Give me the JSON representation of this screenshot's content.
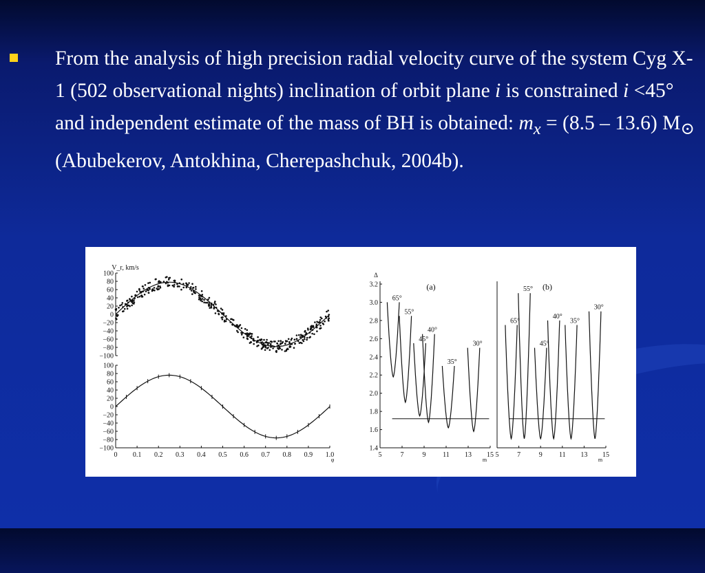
{
  "slide": {
    "bullet_text": {
      "p1": "From the analysis of high precision radial velocity curve of the system Cyg X-1 (502 observational nights) inclination of orbit plane ",
      "i1": "i",
      "p2": " is constrained ",
      "i2": "i",
      "p3": " <45° and independent estimate of the mass of BH is obtained: ",
      "m": "m",
      "x": "x",
      "p4": " = (8.5 – 13.6) M",
      "sun": "⊙",
      "p5": " (Abubekerov, Antokhina, Cherepashchuk, 2004b)."
    },
    "colors": {
      "bullet": "#ffd21a",
      "text": "#ffffff",
      "figure_bg": "#ffffff"
    }
  },
  "chart_data": [
    {
      "type": "scatter",
      "ylabel": "V_r, km/s",
      "ylim": [
        -100,
        100
      ],
      "yticks": [
        "100",
        "80",
        "60",
        "40",
        "20",
        "0",
        "−20",
        "−40",
        "−60",
        "−80",
        "−100"
      ],
      "xlim": [
        0,
        1.0
      ],
      "note": "observed radial velocities vs phase with fitted sine",
      "amplitude": 78,
      "offset": 0,
      "peak_phase": 0.25
    },
    {
      "type": "line",
      "ylim": [
        -100,
        100
      ],
      "yticks": [
        "100",
        "80",
        "60",
        "40",
        "20",
        "0",
        "−20",
        "−40",
        "−60",
        "−80",
        "−100"
      ],
      "xlim": [
        0,
        1.0
      ],
      "xticks": [
        "0",
        "0.1",
        "0.2",
        "0.3",
        "0.4",
        "0.5",
        "0.6",
        "0.7",
        "0.8",
        "0.9",
        "1.0"
      ],
      "xlabel": "φ",
      "amplitude": 76,
      "peak_phase": 0.25
    },
    {
      "type": "line",
      "panel": "(a)",
      "ylabel": "Δ",
      "yticks": [
        "3.2",
        "3.0",
        "2.8",
        "2.6",
        "2.4",
        "2.2",
        "2.0",
        "1.8",
        "1.6",
        "1.4"
      ],
      "ylim": [
        1.4,
        3.2
      ],
      "xticks": [
        "5",
        "7",
        "9",
        "11",
        "13",
        "15"
      ],
      "xlim": [
        5,
        15
      ],
      "xlabel": "m",
      "threshold": 1.72,
      "series": [
        {
          "name": "65°",
          "center": 6.2,
          "min": 2.18,
          "max": 3.0
        },
        {
          "name": "55°",
          "center": 7.3,
          "min": 1.9,
          "max": 2.85
        },
        {
          "name": "45°",
          "center": 8.6,
          "min": 1.75,
          "max": 2.55
        },
        {
          "name": "40°",
          "center": 9.4,
          "min": 1.68,
          "max": 2.65
        },
        {
          "name": "35°",
          "center": 11.2,
          "min": 1.62,
          "max": 2.3
        },
        {
          "name": "30°",
          "center": 13.5,
          "min": 1.58,
          "max": 2.5
        }
      ]
    },
    {
      "type": "line",
      "panel": "(b)",
      "xticks": [
        "5",
        "7",
        "9",
        "11",
        "13",
        "15"
      ],
      "xlim": [
        5,
        15
      ],
      "xlabel": "m",
      "threshold": 1.72,
      "series": [
        {
          "name": "65°",
          "center": 6.3,
          "min": 1.5,
          "max": 2.75
        },
        {
          "name": "55°",
          "center": 7.5,
          "min": 1.5,
          "max": 3.1
        },
        {
          "name": "45°",
          "center": 9.0,
          "min": 1.5,
          "max": 2.5
        },
        {
          "name": "40°",
          "center": 10.2,
          "min": 1.5,
          "max": 2.8
        },
        {
          "name": "35°",
          "center": 11.8,
          "min": 1.5,
          "max": 2.75
        },
        {
          "name": "30°",
          "center": 14.0,
          "min": 1.5,
          "max": 2.9
        }
      ]
    }
  ]
}
